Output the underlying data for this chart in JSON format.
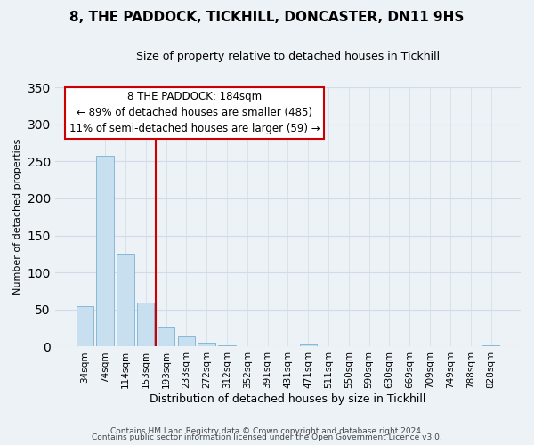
{
  "title": "8, THE PADDOCK, TICKHILL, DONCASTER, DN11 9HS",
  "subtitle": "Size of property relative to detached houses in Tickhill",
  "xlabel": "Distribution of detached houses by size in Tickhill",
  "ylabel": "Number of detached properties",
  "bar_labels": [
    "34sqm",
    "74sqm",
    "114sqm",
    "153sqm",
    "193sqm",
    "233sqm",
    "272sqm",
    "312sqm",
    "352sqm",
    "391sqm",
    "431sqm",
    "471sqm",
    "511sqm",
    "550sqm",
    "590sqm",
    "630sqm",
    "669sqm",
    "709sqm",
    "749sqm",
    "788sqm",
    "828sqm"
  ],
  "bar_values": [
    55,
    257,
    126,
    59,
    27,
    14,
    5,
    2,
    1,
    1,
    0,
    3,
    0,
    0,
    0,
    0,
    0,
    0,
    0,
    0,
    2
  ],
  "bar_color": "#c8dff0",
  "bar_edge_color": "#7ab0d4",
  "vline_color": "#cc0000",
  "ylim": [
    0,
    350
  ],
  "yticks": [
    0,
    50,
    100,
    150,
    200,
    250,
    300,
    350
  ],
  "annotation_title": "8 THE PADDOCK: 184sqm",
  "annotation_line1": "← 89% of detached houses are smaller (485)",
  "annotation_line2": "11% of semi-detached houses are larger (59) →",
  "annotation_box_color": "#ffffff",
  "annotation_box_edge": "#cc0000",
  "footer1": "Contains HM Land Registry data © Crown copyright and database right 2024.",
  "footer2": "Contains public sector information licensed under the Open Government Licence v3.0.",
  "background_color": "#edf2f7",
  "grid_color": "#d0dce8",
  "title_fontsize": 11,
  "subtitle_fontsize": 9,
  "ylabel_fontsize": 8,
  "xlabel_fontsize": 9,
  "tick_fontsize": 7.5,
  "footer_fontsize": 6.5
}
